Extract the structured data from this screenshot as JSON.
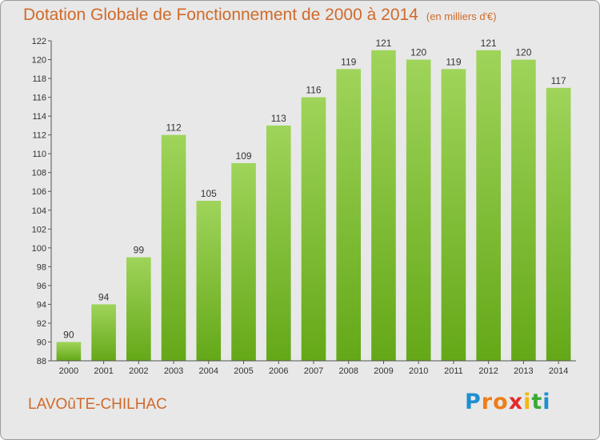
{
  "title": "Dotation Globale de Fonctionnement de 2000 à 2014",
  "subtitle": "(en milliers d'€)",
  "commune": "LAVOûTE-CHILHAC",
  "logo": {
    "letters": [
      "P",
      "r",
      "o",
      "x",
      "i",
      "t",
      "i"
    ],
    "colors": [
      "#1f8fd0",
      "#ee7d1a",
      "#ee7d1a",
      "#e32b2b",
      "#f2b90f",
      "#3aaa35",
      "#1f8fd0"
    ]
  },
  "colors": {
    "title": "#d06a2a",
    "bar_light": "#9fd45a",
    "bar_dark": "#64a818",
    "background": "#e8e8e8"
  },
  "chart_data": {
    "type": "bar",
    "title": "Dotation Globale de Fonctionnement de 2000 à 2014",
    "subtitle": "(en milliers d'€)",
    "categories": [
      "2000",
      "2001",
      "2002",
      "2003",
      "2004",
      "2005",
      "2006",
      "2007",
      "2008",
      "2009",
      "2010",
      "2011",
      "2012",
      "2013",
      "2014"
    ],
    "values": [
      90,
      94,
      99,
      112,
      105,
      109,
      113,
      116,
      119,
      121,
      120,
      119,
      121,
      120,
      117
    ],
    "xlabel": "",
    "ylabel": "",
    "ylim": [
      88,
      122
    ],
    "yticks": [
      88,
      90,
      92,
      94,
      96,
      98,
      100,
      102,
      104,
      106,
      108,
      110,
      112,
      114,
      116,
      118,
      120,
      122
    ],
    "grid": false,
    "data_labels": true
  }
}
